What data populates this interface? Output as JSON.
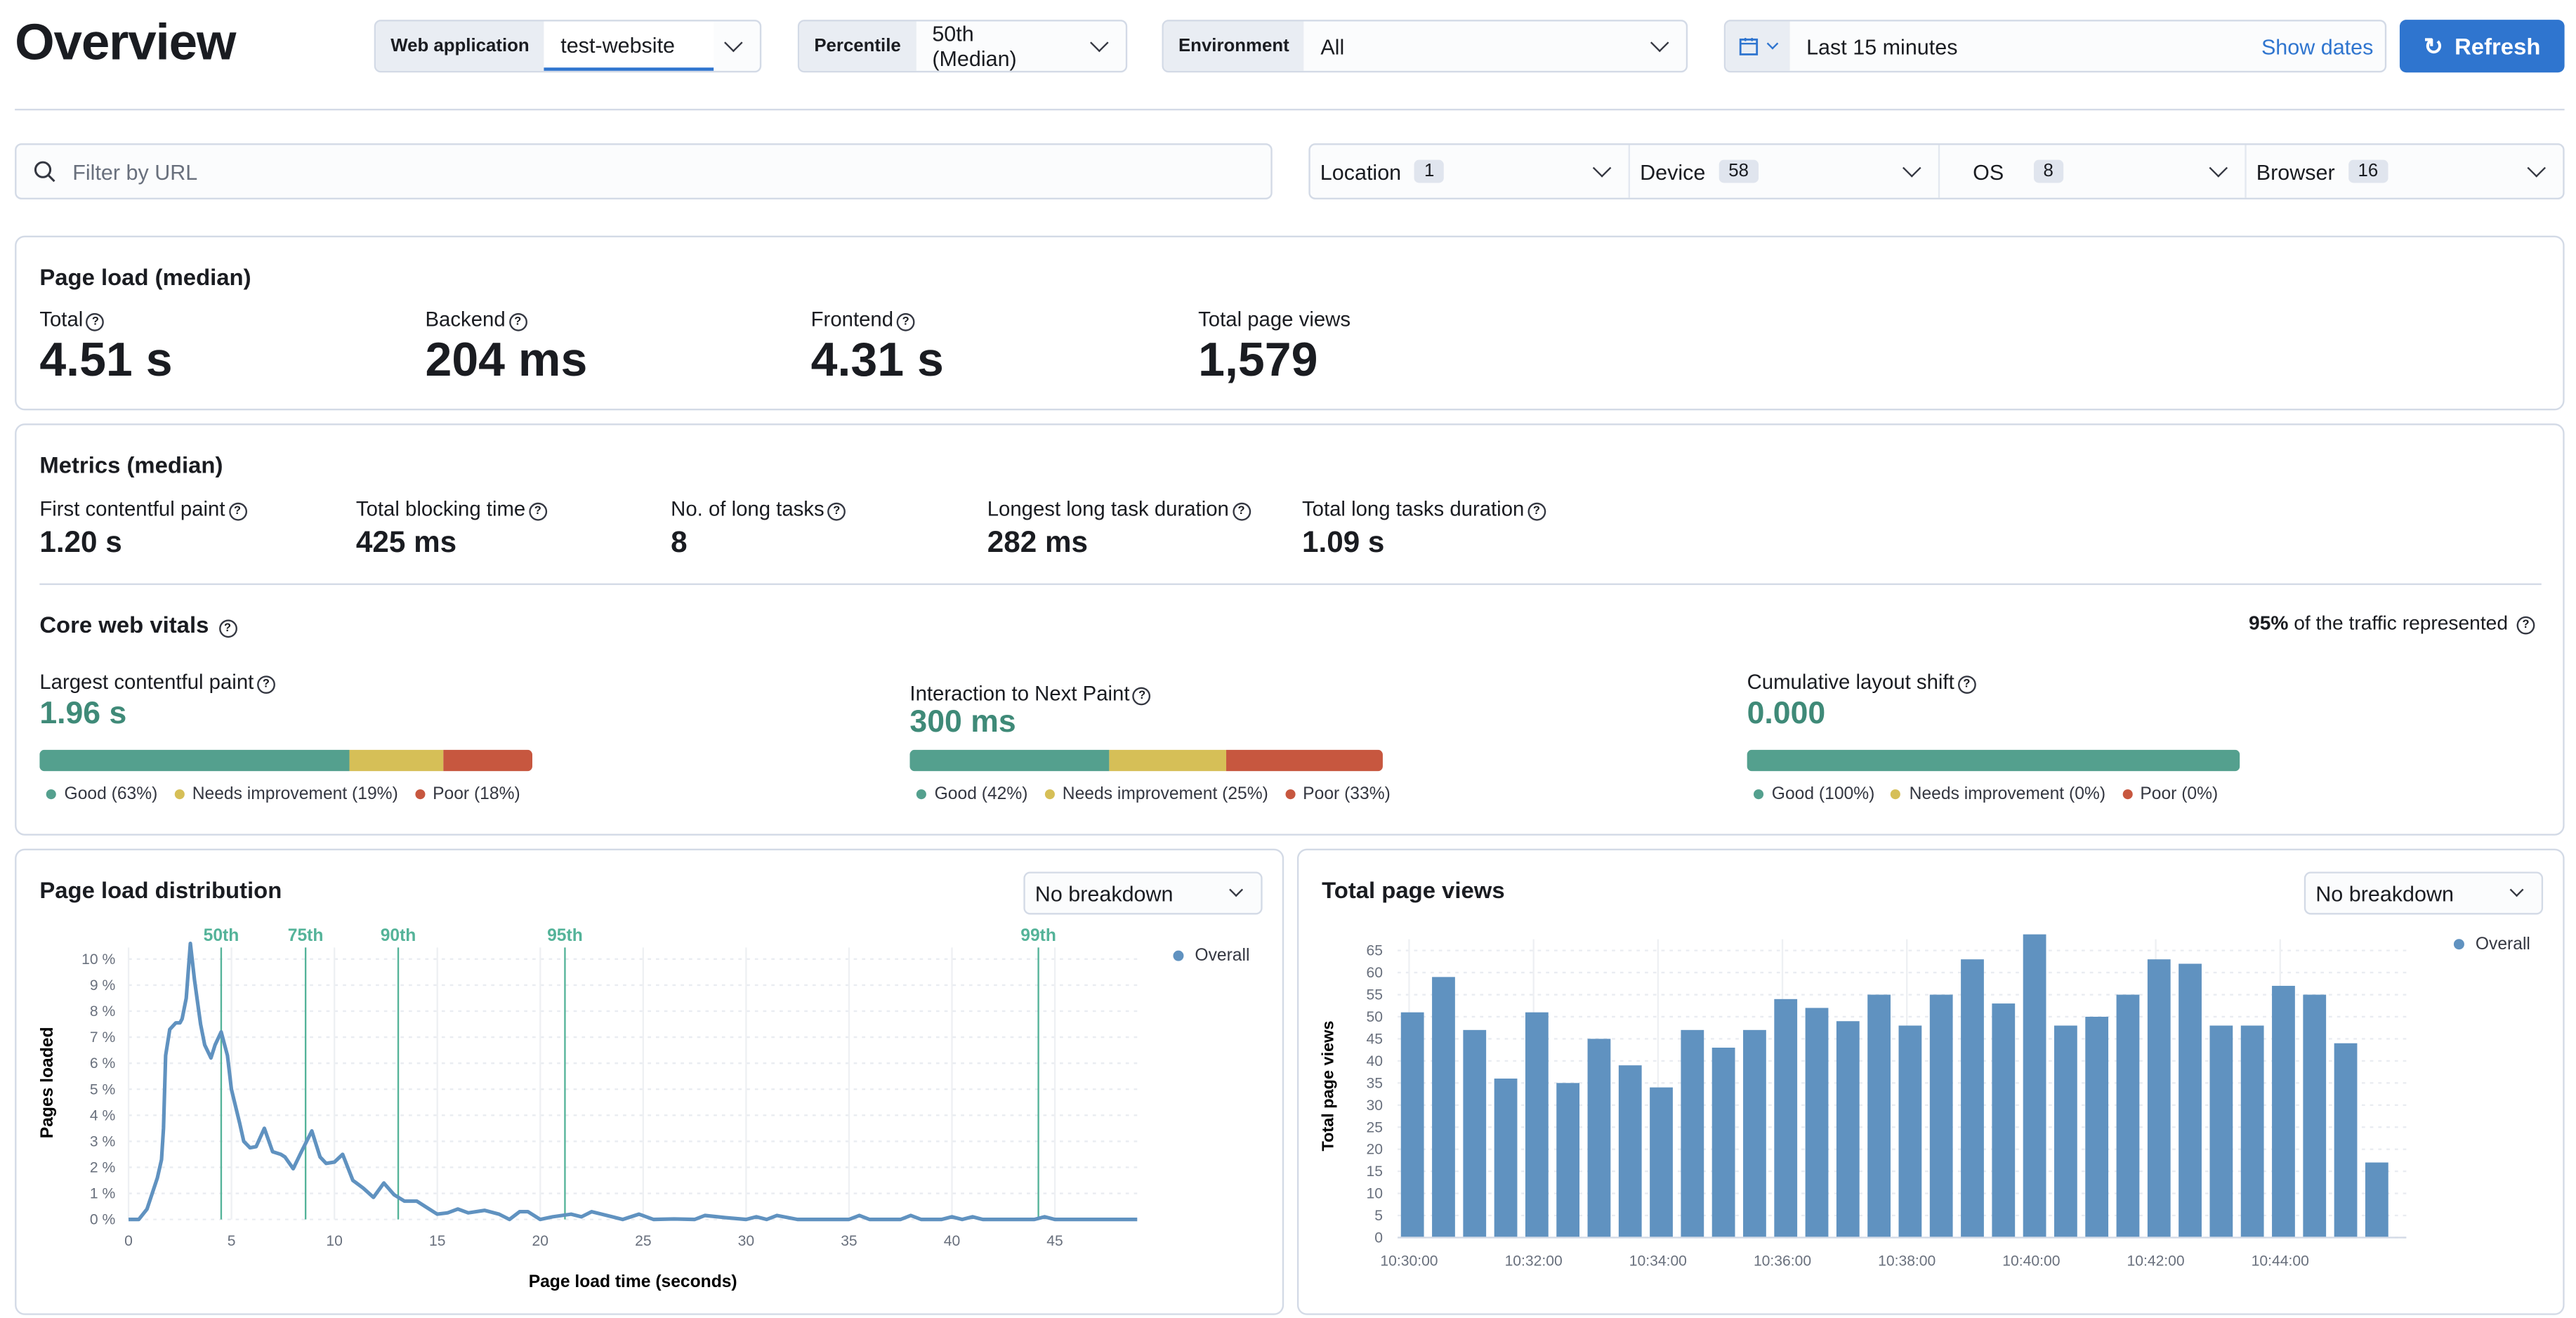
{
  "header": {
    "title": "Overview",
    "web_app_label": "Web application",
    "web_app_value": "test-website",
    "percentile_label": "Percentile",
    "percentile_value": "50th (Median)",
    "environment_label": "Environment",
    "environment_value": "All",
    "date_range": "Last 15 minutes",
    "show_dates": "Show dates",
    "refresh": "Refresh"
  },
  "filters": {
    "search_placeholder": "Filter by URL",
    "items": [
      {
        "label": "Location",
        "count": "1"
      },
      {
        "label": "Device",
        "count": "58"
      },
      {
        "label": "OS",
        "count": "8"
      },
      {
        "label": "Browser",
        "count": "16"
      }
    ]
  },
  "page_load": {
    "title": "Page load (median)",
    "stats": [
      {
        "label": "Total",
        "value": "4.51 s"
      },
      {
        "label": "Backend",
        "value": "204 ms"
      },
      {
        "label": "Frontend",
        "value": "4.31 s"
      },
      {
        "label": "Total page views",
        "value": "1,579"
      }
    ]
  },
  "metrics": {
    "title": "Metrics (median)",
    "stats": [
      {
        "label": "First contentful paint",
        "value": "1.20 s"
      },
      {
        "label": "Total blocking time",
        "value": "425 ms"
      },
      {
        "label": "No. of long tasks",
        "value": "8"
      },
      {
        "label": "Longest long task duration",
        "value": "282 ms"
      },
      {
        "label": "Total long tasks duration",
        "value": "1.09 s"
      }
    ]
  },
  "cwv": {
    "title": "Core web vitals",
    "traffic_pct": "95%",
    "traffic_text": " of the traffic represented",
    "colors": {
      "good": "#54a08e",
      "needs": "#d6bf57",
      "poor": "#c7573f"
    },
    "items": [
      {
        "label": "Largest contentful paint",
        "value": "1.96 s",
        "good": 63,
        "needs": 19,
        "poor": 18,
        "legend": [
          "Good (63%)",
          "Needs improvement (19%)",
          "Poor (18%)"
        ]
      },
      {
        "label": "Interaction to Next Paint",
        "value": "300 ms",
        "good": 42,
        "needs": 25,
        "poor": 33,
        "legend": [
          "Good (42%)",
          "Needs improvement (25%)",
          "Poor (33%)"
        ]
      },
      {
        "label": "Cumulative layout shift",
        "value": "0.000",
        "good": 100,
        "needs": 0,
        "poor": 0,
        "legend": [
          "Good (100%)",
          "Needs improvement (0%)",
          "Poor (0%)"
        ]
      }
    ]
  },
  "dist_panel": {
    "title": "Page load distribution",
    "breakdown": "No breakdown"
  },
  "views_panel": {
    "title": "Total page views",
    "breakdown": "No breakdown"
  },
  "chart_data": [
    {
      "type": "line",
      "xlabel": "Page load time (seconds)",
      "ylabel": "Pages loaded",
      "xlim": [
        0,
        49
      ],
      "ylim": [
        0,
        10.5
      ],
      "xticks": [
        "0",
        "5",
        "10",
        "15",
        "20",
        "25",
        "30",
        "35",
        "40",
        "45"
      ],
      "yticks": [
        "0 %",
        "1 %",
        "2 %",
        "3 %",
        "4 %",
        "5 %",
        "6 %",
        "7 %",
        "8 %",
        "9 %",
        "10 %"
      ],
      "grid": true,
      "legend": "top-right",
      "color": "#6092c0",
      "series": [
        {
          "name": "Overall",
          "points": [
            [
              0,
              0
            ],
            [
              0.5,
              0
            ],
            [
              0.9,
              0.4
            ],
            [
              1.4,
              1.6
            ],
            [
              1.6,
              2.3
            ],
            [
              1.7,
              3.5
            ],
            [
              1.8,
              6.3
            ],
            [
              2,
              7.3
            ],
            [
              2.3,
              7.55
            ],
            [
              2.5,
              7.55
            ],
            [
              2.6,
              7.7
            ],
            [
              2.8,
              8.5
            ],
            [
              3,
              10.6
            ],
            [
              3.2,
              9.2
            ],
            [
              3.5,
              7.5
            ],
            [
              3.7,
              6.7
            ],
            [
              4,
              6.2
            ],
            [
              4.2,
              6.7
            ],
            [
              4.5,
              7.2
            ],
            [
              4.8,
              6.3
            ],
            [
              5,
              5
            ],
            [
              5.4,
              3.7
            ],
            [
              5.6,
              3
            ],
            [
              5.9,
              2.75
            ],
            [
              6.2,
              2.8
            ],
            [
              6.6,
              3.5
            ],
            [
              7,
              2.6
            ],
            [
              7.4,
              2.5
            ],
            [
              7.6,
              2.4
            ],
            [
              8,
              1.95
            ],
            [
              8.4,
              2.6
            ],
            [
              8.9,
              3.4
            ],
            [
              9.3,
              2.4
            ],
            [
              9.6,
              2.15
            ],
            [
              10,
              2.2
            ],
            [
              10.4,
              2.5
            ],
            [
              10.9,
              1.5
            ],
            [
              11.4,
              1.2
            ],
            [
              11.9,
              0.85
            ],
            [
              12.4,
              1.4
            ],
            [
              12.9,
              0.95
            ],
            [
              13.4,
              0.7
            ],
            [
              14,
              0.7
            ],
            [
              14.6,
              0.4
            ],
            [
              15,
              0.2
            ],
            [
              15.5,
              0.25
            ],
            [
              16,
              0.4
            ],
            [
              16.5,
              0.25
            ],
            [
              17.3,
              0.35
            ],
            [
              18,
              0.2
            ],
            [
              18.5,
              0
            ],
            [
              19,
              0.3
            ],
            [
              19.4,
              0.3
            ],
            [
              20,
              0
            ],
            [
              20.6,
              0.1
            ],
            [
              21.5,
              0.2
            ],
            [
              22,
              0.1
            ],
            [
              22.5,
              0.3
            ],
            [
              23.5,
              0.1
            ],
            [
              24,
              0
            ],
            [
              24.8,
              0.2
            ],
            [
              25.5,
              0
            ],
            [
              26.5,
              0.02
            ],
            [
              27.5,
              0
            ],
            [
              28,
              0.15
            ],
            [
              29,
              0.07
            ],
            [
              30,
              0
            ],
            [
              30.5,
              0.1
            ],
            [
              31,
              0
            ],
            [
              31.5,
              0.15
            ],
            [
              32.5,
              0
            ],
            [
              35,
              0
            ],
            [
              35.5,
              0.15
            ],
            [
              36,
              0
            ],
            [
              37.5,
              0
            ],
            [
              38,
              0.15
            ],
            [
              38.5,
              0
            ],
            [
              39.5,
              0
            ],
            [
              40,
              0.1
            ],
            [
              40.5,
              0
            ],
            [
              41,
              0.1
            ],
            [
              41.5,
              0
            ],
            [
              44,
              0
            ],
            [
              44.5,
              0.1
            ],
            [
              45,
              0
            ],
            [
              49,
              0
            ]
          ]
        }
      ],
      "percentiles": [
        {
          "label": "50th",
          "x": 4.5
        },
        {
          "label": "75th",
          "x": 8.6
        },
        {
          "label": "90th",
          "x": 13.1
        },
        {
          "label": "95th",
          "x": 21.2
        },
        {
          "label": "99th",
          "x": 44.2
        }
      ],
      "percentile_color": "#54b399"
    },
    {
      "type": "bar",
      "ylabel": "Total page views",
      "ylim": [
        0,
        69
      ],
      "color": "#6092c0",
      "legend": "top-right",
      "series_name": "Overall",
      "yticks": [
        "0",
        "5",
        "10",
        "15",
        "20",
        "25",
        "30",
        "35",
        "40",
        "45",
        "50",
        "55",
        "60",
        "65"
      ],
      "xticks": [
        "10:30:00",
        "10:32:00",
        "10:34:00",
        "10:36:00",
        "10:38:00",
        "10:40:00",
        "10:42:00",
        "10:44:00"
      ],
      "values": [
        51,
        59,
        47,
        36,
        51,
        35,
        45,
        39,
        34,
        47,
        43,
        47,
        54,
        52,
        49,
        55,
        48,
        55,
        63,
        53,
        69,
        48,
        50,
        55,
        63,
        62,
        48,
        48,
        57,
        55,
        44,
        17
      ]
    }
  ]
}
